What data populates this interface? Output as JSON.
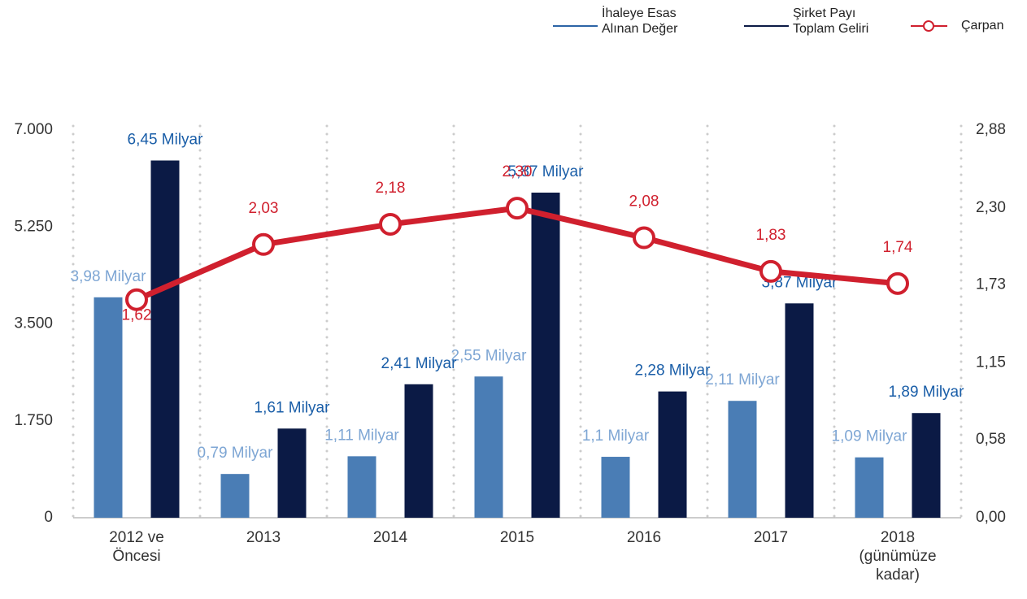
{
  "chart_data": {
    "type": "bar-line",
    "categories": [
      "2012 ve\nÖncesi",
      "2013",
      "2014",
      "2015",
      "2016",
      "2017",
      "2018\n(günümüze\nkadar)"
    ],
    "series": [
      {
        "name": "İhaleye Esas\nAlınan Değer",
        "color": "#4a7db5",
        "label_color": "#7ea6d4",
        "values": [
          3980,
          790,
          1110,
          2550,
          1100,
          2110,
          1090
        ],
        "value_labels": [
          "3,98 Milyar",
          "0,79 Milyar",
          "1,11 Milyar",
          "2,55 Milyar",
          "1,1 Milyar",
          "2,11 Milyar",
          "1,09 Milyar"
        ]
      },
      {
        "name": "Şirket Payı\nToplam Geliri",
        "color": "#0b1a45",
        "label_color": "#1a5ea8",
        "values": [
          6450,
          1610,
          2410,
          5870,
          2280,
          3870,
          1890
        ],
        "value_labels": [
          "6,45 Milyar",
          "1,61 Milyar",
          "2,41 Milyar",
          "5,87 Milyar",
          "2,28 Milyar",
          "3,87 Milyar",
          "1,89 Milyar"
        ]
      },
      {
        "name": "Çarpan",
        "type": "line",
        "axis": "y2",
        "color": "#d0202e",
        "values": [
          1.62,
          2.03,
          2.18,
          2.3,
          2.08,
          1.83,
          1.74
        ],
        "value_labels": [
          "1,62",
          "2,03",
          "2,18",
          "2,30",
          "2,08",
          "1,83",
          "1,74"
        ]
      }
    ],
    "ylim": [
      0,
      7000
    ],
    "yticks": [
      0,
      {
        "value": 1750,
        "label": "1.750"
      },
      {
        "value": 3500,
        "label": "3.500"
      },
      {
        "value": 5250,
        "label": "5.250"
      },
      {
        "value": 7000,
        "label": "7.000"
      }
    ],
    "y2lim": [
      0,
      2.88
    ],
    "y2ticks": [
      {
        "value": 0,
        "label": "0,00"
      },
      {
        "value": 0.58,
        "label": "0,58"
      },
      {
        "value": 1.15,
        "label": "1,15"
      },
      {
        "value": 1.73,
        "label": "1,73"
      },
      {
        "value": 2.3,
        "label": "2,30"
      },
      {
        "value": 2.88,
        "label": "2,88"
      }
    ],
    "legend": "top-right"
  }
}
